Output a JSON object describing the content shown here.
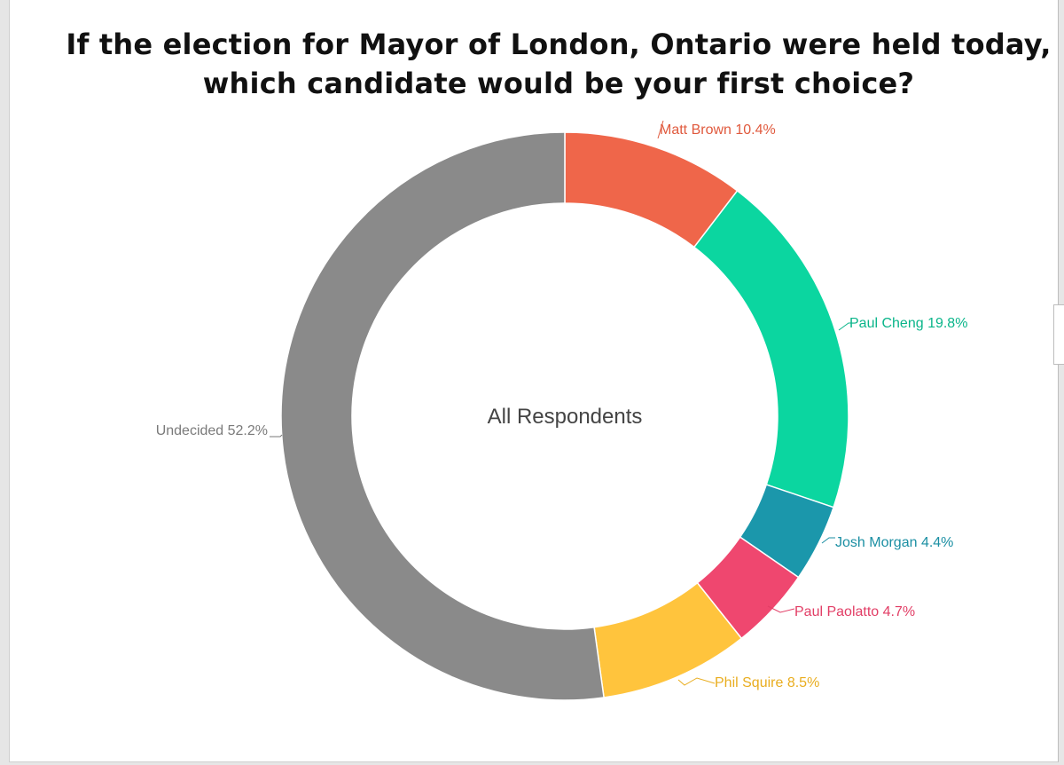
{
  "page": {
    "title_line1": "If the election for Mayor of London, Ontario were held today,",
    "title_line2": "which candidate would be your first choice?"
  },
  "chart_data": {
    "type": "pie",
    "variant": "donut",
    "title": "If the election for Mayor of London, Ontario were held today, which candidate would be your first choice?",
    "center_label": "All Respondents",
    "unit": "%",
    "slices": [
      {
        "name": "Matt Brown",
        "value": 10.4,
        "label": "Matt Brown 10.4%",
        "color": "#ef664a"
      },
      {
        "name": "Paul Cheng",
        "value": 19.8,
        "label": "Paul Cheng 19.8%",
        "color": "#0bd6a0"
      },
      {
        "name": "Josh Morgan",
        "value": 4.4,
        "label": "Josh Morgan 4.4%",
        "color": "#1b97ab"
      },
      {
        "name": "Paul Paolatto",
        "value": 4.7,
        "label": "Paul Paolatto 4.7%",
        "color": "#ef476f"
      },
      {
        "name": "Phil Squire",
        "value": 8.5,
        "label": "Phil Squire 8.5%",
        "color": "#ffc43d"
      },
      {
        "name": "Undecided",
        "value": 52.2,
        "label": "Undecided 52.2%",
        "color": "#8a8a8a"
      }
    ],
    "label_colors": {
      "Matt Brown": "#e05a3e",
      "Paul Cheng": "#0ab58a",
      "Josh Morgan": "#1b8fa3",
      "Paul Paolatto": "#e23e66",
      "Phil Squire": "#e9ad1f",
      "Undecided": "#7a7a7a"
    }
  }
}
